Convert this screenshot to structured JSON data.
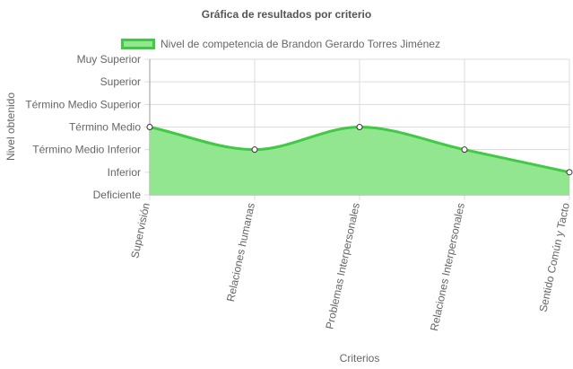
{
  "chart_data": {
    "type": "area",
    "title": "Gráfica de resultados por criterio",
    "xlabel": "Criterios",
    "ylabel": "Nivel obtenido",
    "y_levels": [
      "Deficiente",
      "Inferior",
      "Término Medio Inferior",
      "Término Medio",
      "Término Medio Superior",
      "Superior",
      "Muy Superior"
    ],
    "categories": [
      "Supervisión",
      "Relaciones humanas",
      "Problemas Interpersonales",
      "Relaciones Interpersonales",
      "Sentido Común y Tacto"
    ],
    "series": [
      {
        "name": "Nivel de competencia de Brandon Gerardo Torres Jiménez",
        "values": [
          "Término Medio",
          "Término Medio Inferior",
          "Término Medio",
          "Término Medio Inferior",
          "Inferior"
        ],
        "color_line": "#40c944",
        "color_fill": "#92e68f"
      }
    ],
    "grid": true,
    "legend": "top"
  }
}
